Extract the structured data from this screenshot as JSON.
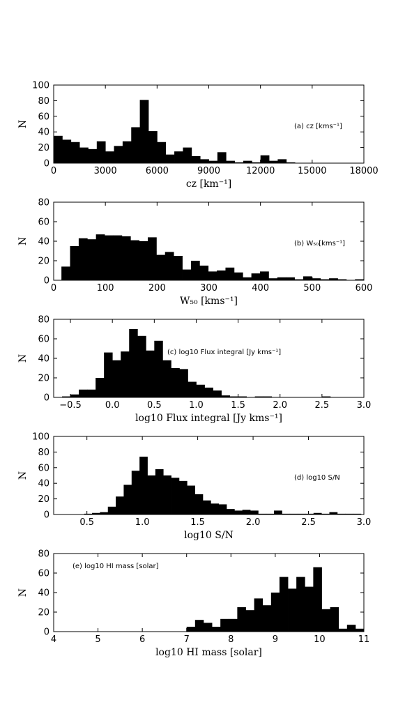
{
  "chart_data": [
    {
      "type": "bar",
      "ylabel": "N",
      "xlabel": "cz [km⁻¹]",
      "annotation": "(a) cz [kms⁻¹]",
      "annotation_position": "right",
      "xlim": [
        0,
        18000
      ],
      "ylim": [
        0,
        100
      ],
      "xticks": [
        0,
        3000,
        6000,
        9000,
        12000,
        15000,
        18000
      ],
      "yticks": [
        0,
        20,
        40,
        60,
        80,
        100
      ],
      "bins": {
        "start": 0,
        "width": 500
      },
      "values": [
        35,
        30,
        27,
        20,
        18,
        28,
        15,
        22,
        28,
        46,
        81,
        41,
        27,
        11,
        15,
        20,
        9,
        5,
        3,
        14,
        3,
        1,
        3,
        1,
        10,
        3,
        5,
        1,
        0,
        0,
        0,
        0,
        0,
        0,
        0,
        0
      ]
    },
    {
      "type": "bar",
      "ylabel": "N",
      "xlabel": "W₅₀ [kms⁻¹]",
      "annotation": "(b) W₅₀[kms⁻¹]",
      "annotation_position": "right",
      "xlim": [
        0,
        600
      ],
      "ylim": [
        0,
        80
      ],
      "xticks": [
        0,
        100,
        200,
        300,
        400,
        500,
        600
      ],
      "yticks": [
        0,
        20,
        40,
        60,
        80
      ],
      "bins": {
        "start": 15,
        "width": 16.7
      },
      "values": [
        14,
        35,
        43,
        42,
        47,
        46,
        46,
        45,
        41,
        40,
        44,
        26,
        29,
        25,
        11,
        20,
        15,
        9,
        10,
        13,
        8,
        3,
        7,
        9,
        2,
        3,
        3,
        1,
        4,
        2,
        1,
        2,
        1,
        0,
        1
      ]
    },
    {
      "type": "bar",
      "ylabel": "N",
      "xlabel": "log10 Flux integral [Jy kms⁻¹]",
      "annotation": "(c) log10 Flux integral [Jy kms⁻¹]",
      "annotation_position": "top-right",
      "xlim": [
        -0.7,
        3.0
      ],
      "ylim": [
        0,
        80
      ],
      "xticks": [
        -0.5,
        0.0,
        0.5,
        1.0,
        1.5,
        2.0,
        2.5,
        3.0
      ],
      "xtick_labels": [
        "−0.5",
        "0.0",
        "0.5",
        "1.0",
        "1.5",
        "2.0",
        "2.5",
        "3.0"
      ],
      "yticks": [
        0,
        20,
        40,
        60,
        80
      ],
      "bins": {
        "start": -0.6,
        "width": 0.1
      },
      "values": [
        1,
        3,
        8,
        8,
        20,
        46,
        38,
        47,
        70,
        63,
        48,
        58,
        38,
        30,
        29,
        16,
        13,
        10,
        7,
        2,
        1,
        1,
        0,
        1,
        1,
        0,
        0,
        0,
        0,
        0,
        0,
        1
      ]
    },
    {
      "type": "bar",
      "ylabel": "N",
      "xlabel": "log10 S/N",
      "annotation": "(d) log10 S/N",
      "annotation_position": "right",
      "xlim": [
        0.2,
        3.0
      ],
      "ylim": [
        0,
        100
      ],
      "xticks": [
        0.5,
        1.0,
        1.5,
        2.0,
        2.5,
        3.0
      ],
      "xtick_labels": [
        "0.5",
        "1.0",
        "1.5",
        "2.0",
        "2.5",
        "3.0"
      ],
      "yticks": [
        0,
        20,
        40,
        60,
        80,
        100
      ],
      "bins": {
        "start": 0.475,
        "width": 0.0714
      },
      "values": [
        1,
        2,
        3,
        10,
        23,
        38,
        56,
        74,
        50,
        58,
        50,
        47,
        43,
        37,
        26,
        18,
        14,
        13,
        7,
        5,
        6,
        5,
        1,
        1,
        5,
        1,
        1,
        1,
        1,
        2,
        1,
        3,
        1,
        1,
        1,
        0,
        1
      ]
    },
    {
      "type": "bar",
      "ylabel": "N",
      "xlabel": "log10 HI mass [solar]",
      "annotation": "(e) log10 HI mass  [solar]",
      "annotation_position": "top-left",
      "xlim": [
        4,
        11
      ],
      "ylim": [
        0,
        80
      ],
      "xticks": [
        4,
        5,
        6,
        7,
        8,
        9,
        10,
        11
      ],
      "yticks": [
        0,
        20,
        40,
        60,
        80
      ],
      "bins": {
        "start": 7.0,
        "width": 0.1905
      },
      "values": [
        5,
        12,
        9,
        5,
        13,
        13,
        25,
        22,
        34,
        27,
        40,
        56,
        44,
        56,
        46,
        66,
        23,
        25,
        3,
        7,
        3,
        6,
        7,
        8
      ]
    }
  ]
}
